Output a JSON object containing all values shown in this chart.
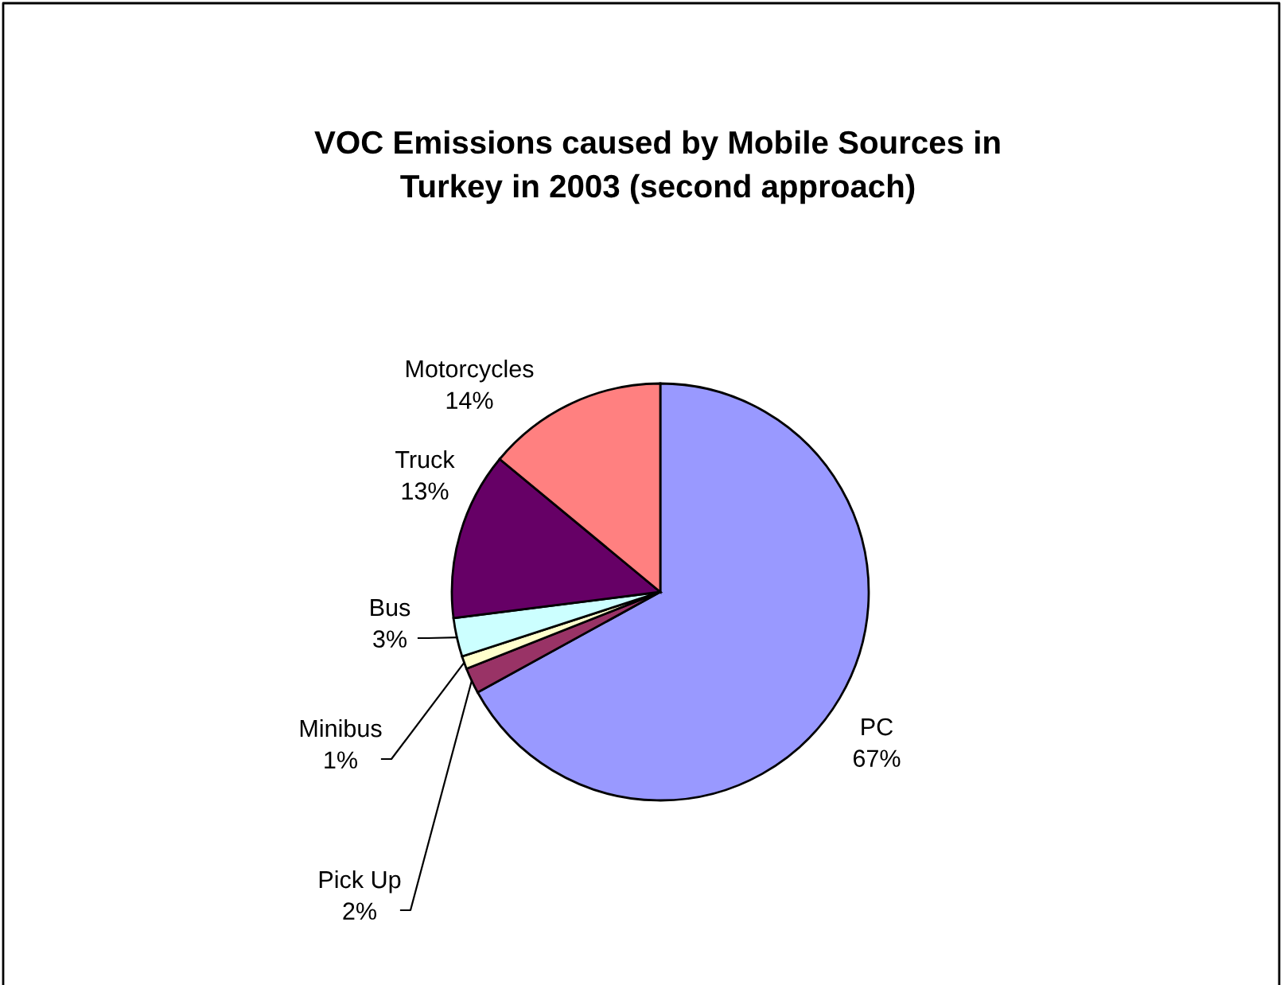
{
  "chart_data": {
    "type": "pie",
    "title": "VOC Emissions caused by Mobile Sources in\nTurkey in 2003 (second approach)",
    "categories": [
      "PC",
      "Pick Up",
      "Minibus",
      "Bus",
      "Truck",
      "Motorcycles"
    ],
    "values": [
      67,
      2,
      1,
      3,
      13,
      14
    ],
    "colors": [
      "#9999ff",
      "#993366",
      "#ffffcc",
      "#ccffff",
      "#660066",
      "#ff8080"
    ],
    "value_labels": [
      "67%",
      "2%",
      "1%",
      "3%",
      "13%",
      "14%"
    ],
    "legend": false
  }
}
